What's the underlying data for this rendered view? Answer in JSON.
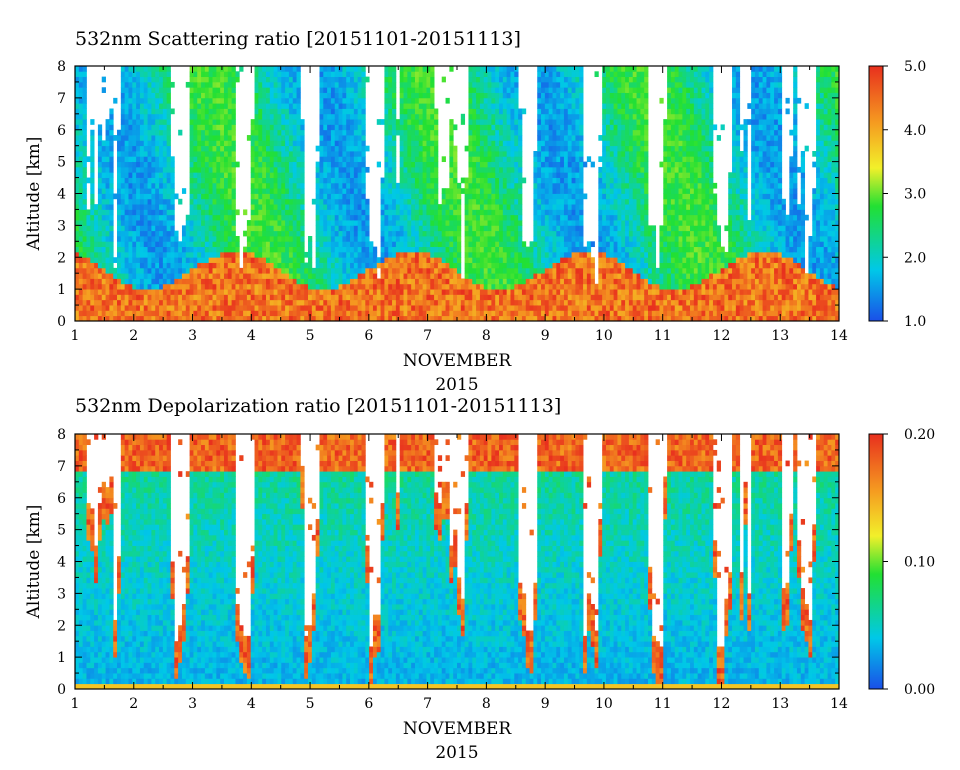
{
  "chart_data": [
    {
      "type": "heatmap",
      "title": "532nm Scattering ratio [20151101-20151113]",
      "ylabel": "Altitude [km]",
      "xlabel": "NOVEMBER",
      "xlabel2": "2015",
      "x_ticks": [
        "1",
        "2",
        "3",
        "4",
        "5",
        "6",
        "7",
        "8",
        "9",
        "10",
        "11",
        "12",
        "13",
        "14"
      ],
      "xlim": [
        1,
        14
      ],
      "y_ticks": [
        "0",
        "1",
        "2",
        "3",
        "4",
        "5",
        "6",
        "7",
        "8"
      ],
      "ylim": [
        0,
        8
      ],
      "colorbar": {
        "range": [
          1.0,
          5.0
        ],
        "ticks": [
          "1.0",
          "2.0",
          "3.0",
          "4.0",
          "5.0"
        ],
        "colors": [
          "#1a4fe8",
          "#00c8e8",
          "#22e033",
          "#f2f02a",
          "#f59a20",
          "#e8301e"
        ]
      },
      "background_color": "#ffffff"
    },
    {
      "type": "heatmap",
      "title": "532nm Depolarization ratio [20151101-20151113]",
      "ylabel": "Altitude [km]",
      "xlabel": "NOVEMBER",
      "xlabel2": "2015",
      "x_ticks": [
        "1",
        "2",
        "3",
        "4",
        "5",
        "6",
        "7",
        "8",
        "9",
        "10",
        "11",
        "12",
        "13",
        "14"
      ],
      "xlim": [
        1,
        14
      ],
      "y_ticks": [
        "0",
        "1",
        "2",
        "3",
        "4",
        "5",
        "6",
        "7",
        "8"
      ],
      "ylim": [
        0,
        8
      ],
      "colorbar": {
        "range": [
          0.0,
          0.2
        ],
        "ticks": [
          "0.00",
          "0.10",
          "0.20"
        ],
        "colors": [
          "#1a4fe8",
          "#00c8e8",
          "#22e033",
          "#f2f02a",
          "#f59a20",
          "#e8301e"
        ]
      },
      "background_color": "#ffffff"
    }
  ]
}
